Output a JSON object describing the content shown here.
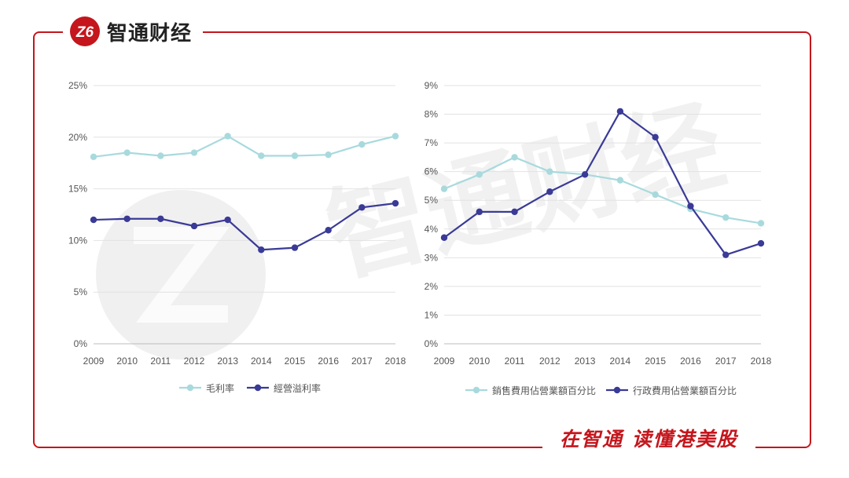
{
  "brand": {
    "logo_text": "Z6",
    "name": "智通财经"
  },
  "slogan": "在智通 读懂港美股",
  "watermark_text": "智通财经",
  "colors": {
    "frame": "#c4161c",
    "light_series": "#a8dadd",
    "dark_series": "#3a3a97",
    "grid": "#e2e2e2"
  },
  "chart_data": [
    {
      "type": "line",
      "title": "",
      "xlabel": "",
      "ylabel": "",
      "categories": [
        "2009",
        "2010",
        "2011",
        "2012",
        "2013",
        "2014",
        "2015",
        "2016",
        "2017",
        "2018"
      ],
      "yticks": [
        "0%",
        "5%",
        "10%",
        "15%",
        "20%",
        "25%"
      ],
      "ylim": [
        0,
        25
      ],
      "series": [
        {
          "name": "毛利率",
          "color": "#a8dadd",
          "values": [
            18.1,
            18.5,
            18.2,
            18.5,
            20.1,
            18.2,
            18.2,
            18.3,
            19.3,
            20.1
          ]
        },
        {
          "name": "經營溢利率",
          "color": "#3a3a97",
          "values": [
            12.0,
            12.1,
            12.1,
            11.4,
            12.0,
            9.1,
            9.3,
            11.0,
            13.2,
            13.6
          ]
        }
      ],
      "legend": "bottom"
    },
    {
      "type": "line",
      "title": "",
      "xlabel": "",
      "ylabel": "",
      "categories": [
        "2009",
        "2010",
        "2011",
        "2012",
        "2013",
        "2014",
        "2015",
        "2016",
        "2017",
        "2018"
      ],
      "yticks": [
        "0%",
        "1%",
        "2%",
        "3%",
        "4%",
        "5%",
        "6%",
        "7%",
        "8%",
        "9%"
      ],
      "ylim": [
        0,
        9
      ],
      "series": [
        {
          "name": "銷售費用佔營業額百分比",
          "color": "#a8dadd",
          "values": [
            5.4,
            5.9,
            6.5,
            6.0,
            5.9,
            5.7,
            5.2,
            4.7,
            4.4,
            4.2
          ]
        },
        {
          "name": "行政費用佔營業額百分比",
          "color": "#3a3a97",
          "values": [
            3.7,
            4.6,
            4.6,
            5.3,
            5.9,
            8.1,
            7.2,
            4.8,
            3.1,
            3.5
          ]
        }
      ],
      "legend": "bottom"
    }
  ]
}
